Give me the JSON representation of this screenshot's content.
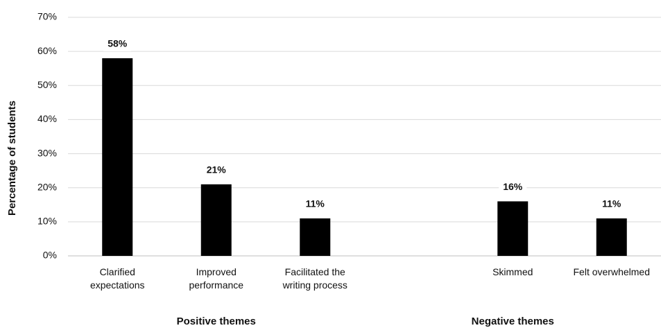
{
  "chart_data": {
    "type": "bar",
    "y_label": "Percentage of students",
    "categories": [
      "Clarified expectations",
      "Improved performance",
      "Facilitated the writing process",
      null,
      "Skimmed",
      "Felt overwhelmed"
    ],
    "values": [
      58,
      21,
      11,
      null,
      16,
      11
    ],
    "value_labels": [
      "58%",
      "21%",
      "11%",
      null,
      "16%",
      "11%"
    ],
    "group_labels": [
      "Positive themes",
      "Negative themes"
    ],
    "color": "#000000",
    "ylim": [
      0,
      70
    ],
    "yticks": [
      {
        "value": 0,
        "label": "0%"
      },
      {
        "value": 10,
        "label": "10%"
      },
      {
        "value": 20,
        "label": "20%"
      },
      {
        "value": 30,
        "label": "30%"
      },
      {
        "value": 40,
        "label": "40%"
      },
      {
        "value": 50,
        "label": "50%"
      },
      {
        "value": 60,
        "label": "60%"
      },
      {
        "value": 70,
        "label": "70%"
      }
    ],
    "grid": true
  }
}
